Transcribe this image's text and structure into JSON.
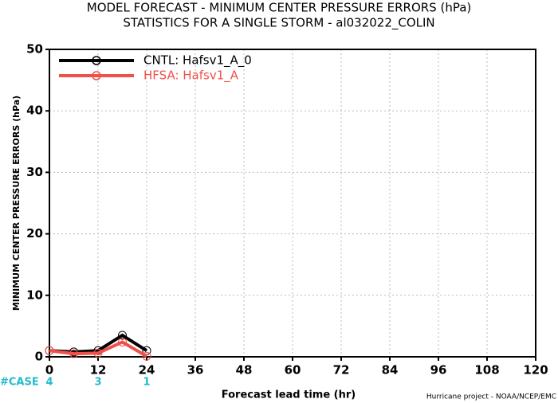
{
  "chart_data": {
    "type": "line",
    "title": "MODEL FORECAST - MINIMUM CENTER PRESSURE ERRORS (hPa)",
    "subtitle": "STATISTICS FOR A SINGLE STORM - al032022_COLIN",
    "xlabel": "Forecast lead time (hr)",
    "ylabel": "MINIMUM CENTER PRESSURE ERRORS (hPa)",
    "footnote": "Hurricane project - NOAA/NCEP/EMC",
    "x": [
      0,
      6,
      12,
      18,
      24
    ],
    "series": [
      {
        "name": "CNTL: Hafsv1_A_0",
        "color": "#000000",
        "values": [
          1.0,
          0.8,
          1.0,
          3.5,
          1.0
        ]
      },
      {
        "name": "HFSA: Hafsv1_A",
        "color": "#f0504a",
        "values": [
          1.0,
          0.5,
          0.6,
          2.4,
          0.1
        ]
      }
    ],
    "cases": {
      "label": "#CASE",
      "color": "#22bbcc",
      "x": [
        0,
        12,
        24
      ],
      "values": [
        4,
        3,
        1
      ]
    },
    "xlim": [
      0,
      120
    ],
    "xticks": [
      0,
      12,
      24,
      36,
      48,
      60,
      72,
      84,
      96,
      108,
      120
    ],
    "ylim": [
      0,
      50
    ],
    "yticks": [
      0,
      10,
      20,
      30,
      40,
      50
    ],
    "grid": true,
    "legend": "top-left"
  }
}
